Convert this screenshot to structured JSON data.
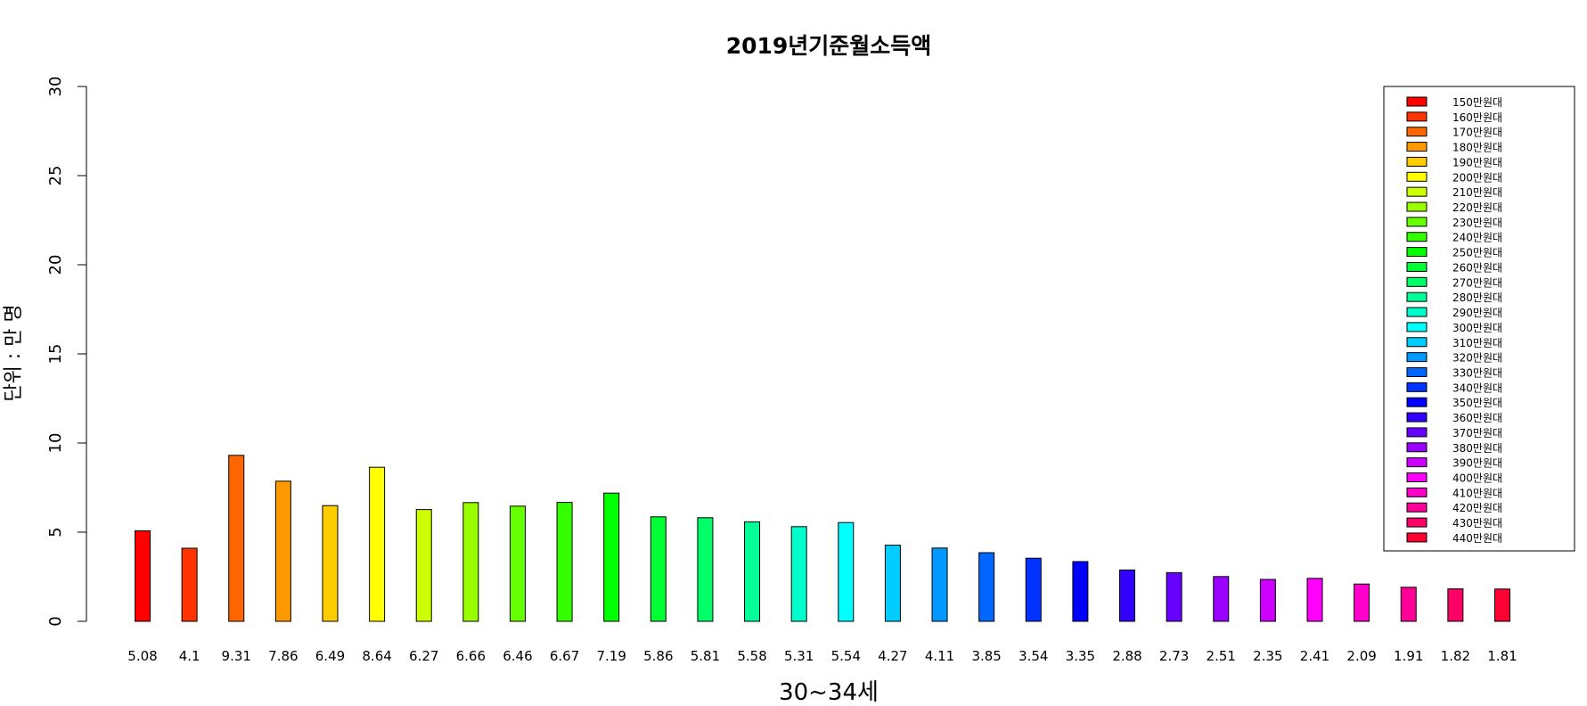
{
  "chart_data": {
    "type": "bar",
    "title": "2019년기준월소득액",
    "xlabel": "30~34세",
    "ylabel": "단위 : 만 명",
    "ylim": [
      0,
      30
    ],
    "yticks": [
      0,
      5,
      10,
      15,
      20,
      25,
      30
    ],
    "grid": false,
    "legend_position": "top-right",
    "categories": [
      "150만원대",
      "160만원대",
      "170만원대",
      "180만원대",
      "190만원대",
      "200만원대",
      "210만원대",
      "220만원대",
      "230만원대",
      "240만원대",
      "250만원대",
      "260만원대",
      "270만원대",
      "280만원대",
      "290만원대",
      "300만원대",
      "310만원대",
      "320만원대",
      "330만원대",
      "340만원대",
      "350만원대",
      "360만원대",
      "370만원대",
      "380만원대",
      "390만원대",
      "400만원대",
      "410만원대",
      "420만원대",
      "430만원대",
      "440만원대"
    ],
    "values": [
      5.08,
      4.1,
      9.31,
      7.86,
      6.49,
      8.64,
      6.27,
      6.66,
      6.46,
      6.67,
      7.19,
      5.86,
      5.81,
      5.58,
      5.31,
      5.54,
      4.27,
      4.11,
      3.85,
      3.54,
      3.35,
      2.88,
      2.73,
      2.51,
      2.35,
      2.41,
      2.09,
      1.91,
      1.82,
      1.81
    ],
    "value_labels": [
      "5.08",
      "4.1",
      "9.31",
      "7.86",
      "6.49",
      "8.64",
      "6.27",
      "6.66",
      "6.46",
      "6.67",
      "7.19",
      "5.86",
      "5.81",
      "5.58",
      "5.31",
      "5.54",
      "4.27",
      "4.11",
      "3.85",
      "3.54",
      "3.35",
      "2.88",
      "2.73",
      "2.51",
      "2.35",
      "2.41",
      "2.09",
      "1.91",
      "1.82",
      "1.81"
    ],
    "colors": [
      "#FF0000",
      "#FF3300",
      "#FF6600",
      "#FF9900",
      "#FFCC00",
      "#FFFF00",
      "#CCFF00",
      "#99FF00",
      "#66FF00",
      "#33FF00",
      "#00FF00",
      "#00FF33",
      "#00FF66",
      "#00FF99",
      "#00FFCC",
      "#00FFFF",
      "#00CCFF",
      "#0099FF",
      "#0066FF",
      "#0033FF",
      "#0000FF",
      "#3300FF",
      "#6600FF",
      "#9900FF",
      "#CC00FF",
      "#FF00FF",
      "#FF00CC",
      "#FF0099",
      "#FF0066",
      "#FF0033"
    ]
  }
}
